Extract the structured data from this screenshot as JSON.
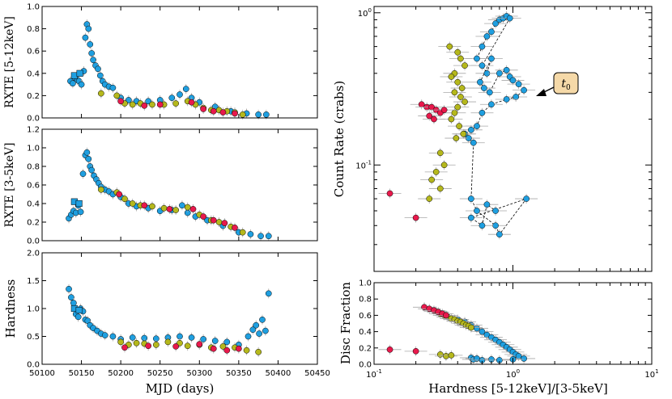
{
  "colors": {
    "blue": "#1f9fe0",
    "yellow": "#b5b81c",
    "red": "#e8194c",
    "err": "#a8a8a8"
  },
  "chart_data": [
    {
      "id": "rxte-hard",
      "type": "scatter",
      "ylabel": "RXTE [5-12keV]",
      "xlim": [
        50100,
        50450
      ],
      "ylim": [
        0.0,
        1.0
      ],
      "yticks": [
        "0.0",
        "0.2",
        "0.4",
        "0.6",
        "0.8",
        "1.0"
      ],
      "series": [
        {
          "name": "blue",
          "x": [
            50136,
            50139,
            50142,
            50145,
            50147,
            50150,
            50153,
            50155,
            50157,
            50159,
            50161,
            50163,
            50165,
            50168,
            50171,
            50174,
            50177,
            50180,
            50185,
            50190,
            50200,
            50210,
            50220,
            50235,
            50250,
            50265,
            50275,
            50283,
            50290,
            50300,
            50320,
            50340,
            50360,
            50375,
            50385
          ],
          "y": [
            0.33,
            0.31,
            0.36,
            0.34,
            0.33,
            0.3,
            0.42,
            0.72,
            0.84,
            0.8,
            0.66,
            0.58,
            0.52,
            0.47,
            0.44,
            0.38,
            0.33,
            0.3,
            0.28,
            0.27,
            0.18,
            0.16,
            0.15,
            0.15,
            0.16,
            0.18,
            0.21,
            0.26,
            0.18,
            0.14,
            0.1,
            0.06,
            0.04,
            0.03,
            0.03
          ]
        },
        {
          "name": "yellow",
          "x": [
            50175,
            50195,
            50205,
            50215,
            50225,
            50240,
            50255,
            50270,
            50285,
            50295,
            50305,
            50315,
            50325,
            50335,
            50345,
            50355
          ],
          "y": [
            0.22,
            0.2,
            0.13,
            0.12,
            0.13,
            0.12,
            0.12,
            0.13,
            0.15,
            0.12,
            0.09,
            0.07,
            0.07,
            0.06,
            0.05,
            0.03
          ]
        },
        {
          "name": "red",
          "x": [
            50200,
            50230,
            50250,
            50290,
            50305,
            50318,
            50330,
            50345
          ],
          "y": [
            0.15,
            0.11,
            0.12,
            0.14,
            0.08,
            0.06,
            0.05,
            0.04
          ]
        }
      ],
      "squares": {
        "x": [
          50141,
          50148
        ],
        "y": [
          0.38,
          0.4
        ]
      }
    },
    {
      "id": "rxte-soft",
      "type": "scatter",
      "ylabel": "RXTE [3-5keV]",
      "xlim": [
        50100,
        50450
      ],
      "ylim": [
        0.0,
        1.2
      ],
      "yticks": [
        "0.0",
        "0.2",
        "0.4",
        "0.6",
        "0.8",
        "1.0",
        "1.2"
      ],
      "series": [
        {
          "name": "blue",
          "x": [
            50134,
            50137,
            50140,
            50143,
            50146,
            50149,
            50152,
            50155,
            50157,
            50159,
            50161,
            50163,
            50166,
            50169,
            50172,
            50175,
            50180,
            50185,
            50190,
            50200,
            50210,
            50220,
            50235,
            50250,
            50265,
            50278,
            50285,
            50295,
            50310,
            50330,
            50350,
            50365,
            50378,
            50388
          ],
          "y": [
            0.24,
            0.28,
            0.32,
            0.3,
            0.38,
            0.31,
            0.72,
            0.92,
            0.95,
            0.88,
            0.8,
            0.76,
            0.7,
            0.66,
            0.62,
            0.58,
            0.55,
            0.53,
            0.5,
            0.47,
            0.4,
            0.37,
            0.35,
            0.32,
            0.33,
            0.38,
            0.3,
            0.26,
            0.22,
            0.16,
            0.09,
            0.07,
            0.05,
            0.05
          ]
        },
        {
          "name": "yellow",
          "x": [
            50175,
            50195,
            50205,
            50215,
            50225,
            50240,
            50255,
            50270,
            50285,
            50300,
            50315,
            50325,
            50340,
            50355
          ],
          "y": [
            0.55,
            0.52,
            0.45,
            0.4,
            0.38,
            0.37,
            0.35,
            0.33,
            0.36,
            0.28,
            0.22,
            0.2,
            0.15,
            0.09
          ]
        },
        {
          "name": "red",
          "x": [
            50198,
            50230,
            50262,
            50292,
            50305,
            50318,
            50332,
            50345
          ],
          "y": [
            0.5,
            0.38,
            0.34,
            0.34,
            0.26,
            0.22,
            0.19,
            0.14
          ]
        }
      ],
      "squares": {
        "x": [
          50141,
          50147
        ],
        "y": [
          0.42,
          0.4
        ]
      }
    },
    {
      "id": "hardness-time",
      "type": "scatter",
      "ylabel": "Hardness",
      "xlabel": "MJD (days)",
      "xlim": [
        50100,
        50450
      ],
      "ylim": [
        0.0,
        2.0
      ],
      "xticks": [
        "50100",
        "50150",
        "50200",
        "50250",
        "50300",
        "50350",
        "50400",
        "50450"
      ],
      "yticks": [
        "0.0",
        "0.5",
        "1.0",
        "1.5",
        "2.0"
      ],
      "series": [
        {
          "name": "blue",
          "x": [
            50134,
            50137,
            50140,
            50143,
            50146,
            50149,
            50152,
            50155,
            50158,
            50161,
            50165,
            50170,
            50175,
            50180,
            50190,
            50200,
            50215,
            50230,
            50245,
            50260,
            50275,
            50290,
            50305,
            50320,
            50335,
            50350,
            50362,
            50368,
            50372,
            50376,
            50380,
            50384,
            50388
          ],
          "y": [
            1.35,
            1.2,
            1.1,
            0.9,
            0.85,
            1.0,
            0.95,
            0.8,
            0.78,
            0.7,
            0.65,
            0.6,
            0.55,
            0.52,
            0.5,
            0.45,
            0.48,
            0.47,
            0.46,
            0.48,
            0.5,
            0.48,
            0.45,
            0.42,
            0.4,
            0.35,
            0.5,
            0.62,
            0.7,
            0.55,
            0.8,
            0.6,
            1.27
          ]
        },
        {
          "name": "yellow",
          "x": [
            50200,
            50210,
            50220,
            50230,
            50245,
            50260,
            50275,
            50285,
            50300,
            50315,
            50330,
            50345,
            50360,
            50375
          ],
          "y": [
            0.4,
            0.35,
            0.38,
            0.37,
            0.35,
            0.4,
            0.38,
            0.33,
            0.35,
            0.3,
            0.32,
            0.3,
            0.25,
            0.22
          ]
        },
        {
          "name": "red",
          "x": [
            50205,
            50235,
            50270,
            50300,
            50318,
            50335,
            50350
          ],
          "y": [
            0.3,
            0.33,
            0.32,
            0.36,
            0.28,
            0.25,
            0.28
          ]
        }
      ],
      "squares": {
        "x": [
          50141,
          50147
        ],
        "y": [
          1.0,
          0.97
        ]
      }
    },
    {
      "id": "hid",
      "type": "scatter",
      "ylabel": "Count Rate (crabs)",
      "xscale": "log",
      "yscale": "log",
      "xlim": [
        0.1,
        10
      ],
      "ylim": [
        0.02,
        1.1
      ],
      "yticks": [
        "10^-1",
        "10^0"
      ],
      "annotation": "t_0",
      "series": [
        {
          "name": "blue",
          "x": [
            0.55,
            0.6,
            0.65,
            0.7,
            0.75,
            0.8,
            0.85,
            0.9,
            0.95,
            0.6,
            0.65,
            0.7,
            0.58,
            0.62,
            0.68,
            0.8,
            0.9,
            0.95,
            1.0,
            1.1,
            1.2,
            1.05,
            0.9,
            0.7,
            0.6,
            0.55,
            0.5,
            0.45,
            0.48,
            0.52,
            0.5,
            0.55,
            0.75,
            0.8,
            1.25,
            0.5,
            0.6,
            0.65,
            0.75
          ],
          "y": [
            0.5,
            0.6,
            0.7,
            0.75,
            0.85,
            0.9,
            0.92,
            0.95,
            0.92,
            0.45,
            0.4,
            0.5,
            0.35,
            0.32,
            0.3,
            0.4,
            0.42,
            0.38,
            0.36,
            0.34,
            0.31,
            0.28,
            0.27,
            0.25,
            0.22,
            0.18,
            0.17,
            0.16,
            0.15,
            0.14,
            0.06,
            0.05,
            0.04,
            0.035,
            0.06,
            0.045,
            0.04,
            0.055,
            0.05
          ]
        },
        {
          "name": "yellow",
          "x": [
            0.35,
            0.4,
            0.42,
            0.45,
            0.38,
            0.36,
            0.4,
            0.43,
            0.38,
            0.42,
            0.45,
            0.4,
            0.38,
            0.36,
            0.41,
            0.44,
            0.39,
            0.3,
            0.32,
            0.28,
            0.26,
            0.3,
            0.25
          ],
          "y": [
            0.6,
            0.55,
            0.5,
            0.45,
            0.4,
            0.38,
            0.35,
            0.32,
            0.3,
            0.28,
            0.26,
            0.24,
            0.22,
            0.2,
            0.18,
            0.16,
            0.15,
            0.12,
            0.1,
            0.09,
            0.08,
            0.07,
            0.06
          ]
        },
        {
          "name": "red",
          "x": [
            0.22,
            0.24,
            0.26,
            0.28,
            0.3,
            0.32,
            0.25,
            0.27,
            0.13,
            0.2
          ],
          "y": [
            0.25,
            0.24,
            0.24,
            0.23,
            0.22,
            0.23,
            0.21,
            0.2,
            0.065,
            0.045
          ]
        }
      ]
    },
    {
      "id": "disc-fraction",
      "type": "scatter",
      "ylabel": "Disc Fraction",
      "xlabel": "Hardness [5-12keV]/[3-5keV]",
      "xscale": "log",
      "xlim": [
        0.1,
        10
      ],
      "ylim": [
        0.0,
        1.0
      ],
      "xticks": [
        "10^-1",
        "10^0",
        "10^1"
      ],
      "yticks": [
        "0.0",
        "0.2",
        "0.4",
        "0.6",
        "0.8",
        "1.0"
      ],
      "series": [
        {
          "name": "blue",
          "x": [
            0.4,
            0.45,
            0.5,
            0.55,
            0.6,
            0.65,
            0.7,
            0.75,
            0.8,
            0.85,
            0.9,
            0.95,
            1.0,
            1.05,
            1.1,
            1.2,
            0.5,
            0.52,
            0.55,
            0.6,
            0.7,
            0.8,
            1.0
          ],
          "y": [
            0.55,
            0.52,
            0.48,
            0.44,
            0.4,
            0.36,
            0.33,
            0.3,
            0.27,
            0.24,
            0.21,
            0.18,
            0.15,
            0.12,
            0.1,
            0.07,
            0.08,
            0.06,
            0.07,
            0.05,
            0.06,
            0.05,
            0.06
          ]
        },
        {
          "name": "yellow",
          "x": [
            0.28,
            0.3,
            0.32,
            0.34,
            0.36,
            0.38,
            0.4,
            0.42,
            0.44,
            0.46,
            0.48,
            0.5,
            0.3,
            0.33,
            0.36
          ],
          "y": [
            0.65,
            0.62,
            0.6,
            0.58,
            0.56,
            0.55,
            0.53,
            0.52,
            0.5,
            0.48,
            0.47,
            0.45,
            0.12,
            0.1,
            0.11
          ]
        },
        {
          "name": "red",
          "x": [
            0.23,
            0.25,
            0.27,
            0.29,
            0.31,
            0.33,
            0.13,
            0.2
          ],
          "y": [
            0.7,
            0.68,
            0.66,
            0.64,
            0.62,
            0.6,
            0.18,
            0.16
          ]
        }
      ]
    }
  ]
}
